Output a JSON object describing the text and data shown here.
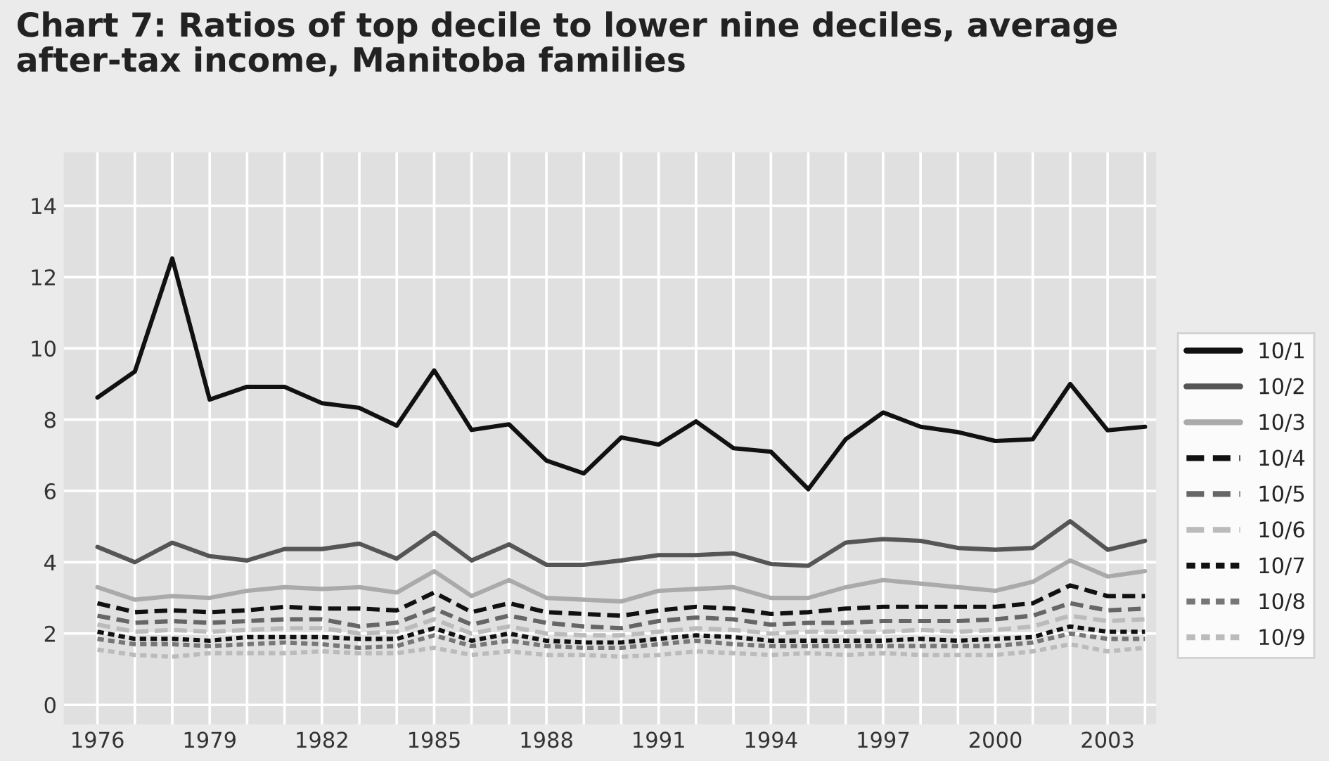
{
  "chart_data": {
    "type": "line",
    "title": "Chart 7: Ratios of top decile to lower nine deciles, average\nafter-tax income, Manitoba families",
    "x": [
      1976,
      1977,
      1978,
      1979,
      1980,
      1981,
      1982,
      1983,
      1984,
      1985,
      1986,
      1987,
      1988,
      1989,
      1990,
      1991,
      1992,
      1993,
      1994,
      1995,
      1996,
      1997,
      1998,
      1999,
      2000,
      2001,
      2002,
      2003,
      2004
    ],
    "series": [
      {
        "name": "10/1",
        "color": "#111111",
        "line_style": "solid",
        "values": [
          8.62,
          9.35,
          12.52,
          8.56,
          8.92,
          8.92,
          8.46,
          8.33,
          7.83,
          9.38,
          7.71,
          7.87,
          6.85,
          6.49,
          7.5,
          7.3,
          7.95,
          7.2,
          7.1,
          6.05,
          7.45,
          8.2,
          7.8,
          7.65,
          7.4,
          7.45,
          9.0,
          7.7,
          7.8
        ]
      },
      {
        "name": "10/2",
        "color": "#555555",
        "line_style": "solid",
        "values": [
          4.43,
          4.0,
          4.55,
          4.17,
          4.05,
          4.37,
          4.37,
          4.52,
          4.1,
          4.83,
          4.05,
          4.5,
          3.93,
          3.93,
          4.05,
          4.2,
          4.2,
          4.25,
          3.95,
          3.9,
          4.55,
          4.65,
          4.6,
          4.4,
          4.35,
          4.4,
          5.15,
          4.35,
          4.6
        ]
      },
      {
        "name": "10/3",
        "color": "#aaaaaa",
        "line_style": "solid",
        "values": [
          3.3,
          2.95,
          3.05,
          3.0,
          3.2,
          3.3,
          3.25,
          3.3,
          3.15,
          3.75,
          3.05,
          3.5,
          3.0,
          2.95,
          2.9,
          3.2,
          3.25,
          3.3,
          3.0,
          3.0,
          3.3,
          3.5,
          3.4,
          3.3,
          3.2,
          3.45,
          4.05,
          3.6,
          3.75
        ]
      },
      {
        "name": "10/4",
        "color": "#111111",
        "line_style": "dashed",
        "values": [
          2.85,
          2.6,
          2.65,
          2.6,
          2.65,
          2.75,
          2.7,
          2.7,
          2.65,
          3.15,
          2.6,
          2.85,
          2.6,
          2.55,
          2.5,
          2.65,
          2.75,
          2.7,
          2.55,
          2.6,
          2.7,
          2.75,
          2.75,
          2.75,
          2.75,
          2.85,
          3.35,
          3.05,
          3.05
        ]
      },
      {
        "name": "10/5",
        "color": "#666666",
        "line_style": "dashed",
        "values": [
          2.5,
          2.3,
          2.35,
          2.3,
          2.35,
          2.4,
          2.4,
          2.2,
          2.3,
          2.7,
          2.25,
          2.5,
          2.3,
          2.2,
          2.15,
          2.35,
          2.45,
          2.4,
          2.25,
          2.3,
          2.3,
          2.35,
          2.35,
          2.35,
          2.4,
          2.5,
          2.85,
          2.65,
          2.7
        ]
      },
      {
        "name": "10/6",
        "color": "#bbbbbb",
        "line_style": "dashed",
        "values": [
          2.25,
          2.05,
          2.1,
          2.05,
          2.1,
          2.15,
          2.15,
          2.0,
          2.05,
          2.4,
          2.0,
          2.2,
          2.0,
          1.95,
          1.95,
          2.05,
          2.15,
          2.1,
          2.0,
          2.05,
          2.05,
          2.05,
          2.1,
          2.05,
          2.1,
          2.2,
          2.5,
          2.35,
          2.4
        ]
      },
      {
        "name": "10/7",
        "color": "#111111",
        "line_style": "dotted",
        "values": [
          2.05,
          1.85,
          1.85,
          1.8,
          1.9,
          1.9,
          1.9,
          1.85,
          1.85,
          2.15,
          1.8,
          2.0,
          1.8,
          1.75,
          1.75,
          1.85,
          1.95,
          1.9,
          1.8,
          1.8,
          1.8,
          1.8,
          1.85,
          1.8,
          1.85,
          1.9,
          2.2,
          2.05,
          2.05
        ]
      },
      {
        "name": "10/8",
        "color": "#777777",
        "line_style": "dotted",
        "values": [
          1.85,
          1.7,
          1.7,
          1.65,
          1.7,
          1.75,
          1.7,
          1.6,
          1.65,
          1.95,
          1.65,
          1.8,
          1.65,
          1.6,
          1.6,
          1.7,
          1.8,
          1.7,
          1.65,
          1.65,
          1.65,
          1.65,
          1.65,
          1.65,
          1.65,
          1.75,
          2.0,
          1.85,
          1.85
        ]
      },
      {
        "name": "10/9",
        "color": "#bbbbbb",
        "line_style": "dotted",
        "values": [
          1.55,
          1.4,
          1.35,
          1.45,
          1.45,
          1.45,
          1.5,
          1.45,
          1.45,
          1.6,
          1.4,
          1.5,
          1.4,
          1.4,
          1.35,
          1.4,
          1.5,
          1.45,
          1.4,
          1.45,
          1.4,
          1.45,
          1.4,
          1.4,
          1.4,
          1.5,
          1.7,
          1.5,
          1.6
        ]
      }
    ],
    "xlim": [
      1975.1,
      2004.3
    ],
    "xticks": [
      1976,
      {
        "value": 1977,
        "label": null
      },
      {
        "value": 1978,
        "label": null
      },
      1979,
      {
        "value": 1980,
        "label": null
      },
      {
        "value": 1981,
        "label": null
      },
      1982,
      {
        "value": 1983,
        "label": null
      },
      {
        "value": 1984,
        "label": null
      },
      1985,
      {
        "value": 1986,
        "label": null
      },
      {
        "value": 1987,
        "label": null
      },
      1988,
      {
        "value": 1989,
        "label": null
      },
      {
        "value": 1990,
        "label": null
      },
      1991,
      {
        "value": 1992,
        "label": null
      },
      {
        "value": 1993,
        "label": null
      },
      1994,
      {
        "value": 1995,
        "label": null
      },
      {
        "value": 1996,
        "label": null
      },
      1997,
      {
        "value": 1998,
        "label": null
      },
      {
        "value": 1999,
        "label": null
      },
      2000,
      {
        "value": 2001,
        "label": null
      },
      {
        "value": 2002,
        "label": null
      },
      2003,
      {
        "value": 2004,
        "label": null
      }
    ],
    "ylim": [
      -0.55,
      15.5
    ],
    "yticks": [
      0,
      2,
      4,
      6,
      8,
      10,
      12,
      14
    ],
    "grid": true,
    "legend": "right"
  }
}
